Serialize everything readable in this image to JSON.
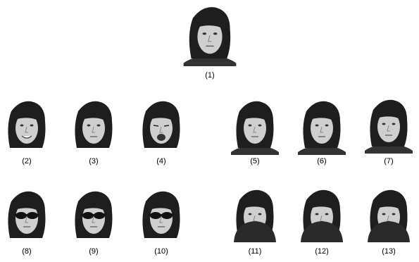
{
  "figure": {
    "labels": [
      "(1)",
      "(2)",
      "(3)",
      "(4)",
      "(5)",
      "(6)",
      "(7)",
      "(8)",
      "(9)",
      "(10)",
      "(11)",
      "(12)",
      "(13)"
    ]
  }
}
